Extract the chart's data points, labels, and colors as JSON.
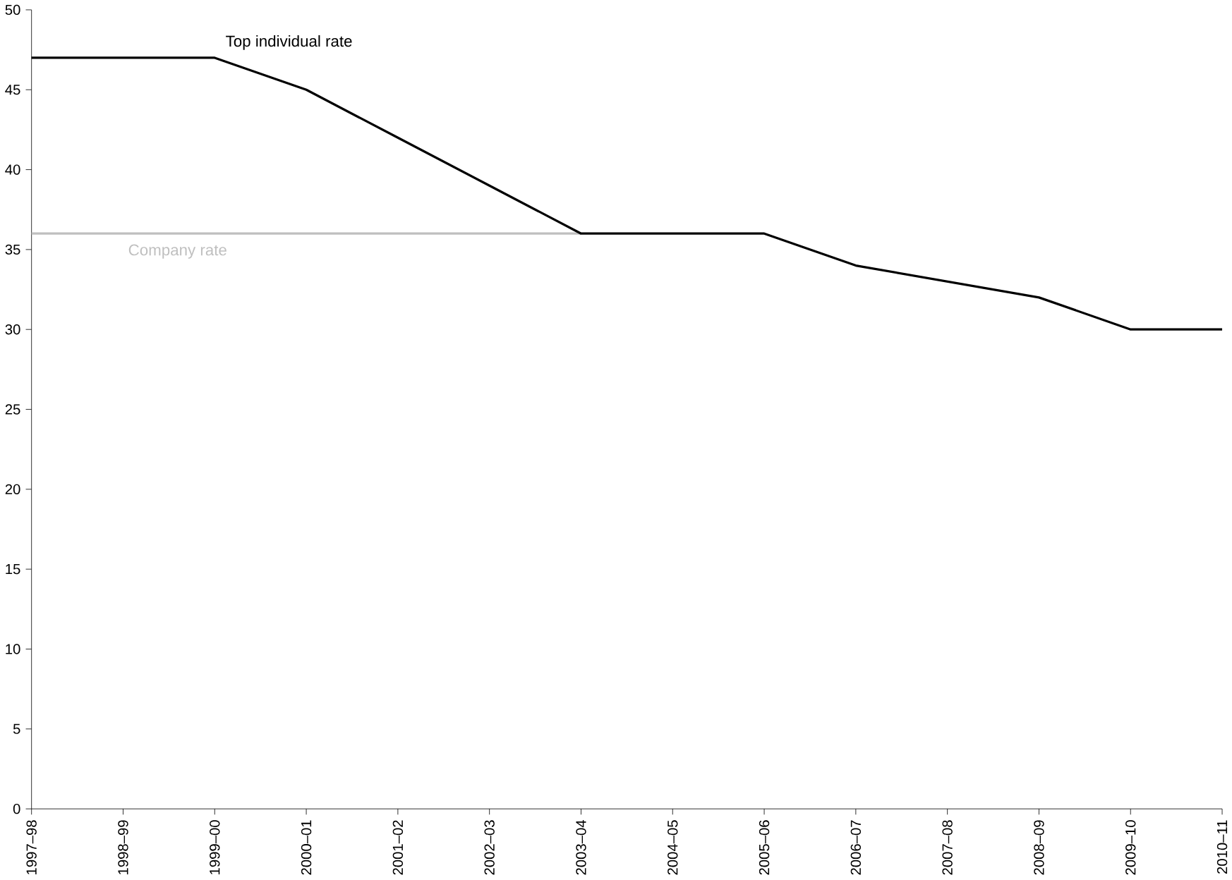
{
  "chart_data": {
    "type": "line",
    "categories": [
      "1997–98",
      "1998–99",
      "1999–00",
      "2000–01",
      "2001–02",
      "2002–03",
      "2003–04",
      "2004–05",
      "2005–06",
      "2006–07",
      "2007–08",
      "2008–09",
      "2009–10",
      "2010–11"
    ],
    "series": [
      {
        "name": "Top individual rate",
        "color": "#000000",
        "values": [
          47,
          47,
          47,
          45,
          42,
          39,
          36,
          36,
          36,
          34,
          33,
          32,
          30,
          30
        ]
      },
      {
        "name": "Company rate",
        "color": "#bfbfbf",
        "values": [
          36,
          36,
          36,
          36,
          36,
          36,
          36,
          null,
          null,
          null,
          null,
          null,
          null,
          null
        ]
      }
    ],
    "ylim": [
      0,
      50
    ],
    "yticks": [
      0,
      5,
      10,
      15,
      20,
      25,
      30,
      35,
      40,
      45,
      50
    ],
    "grid": false,
    "marker": "none",
    "line_style": "solid"
  }
}
